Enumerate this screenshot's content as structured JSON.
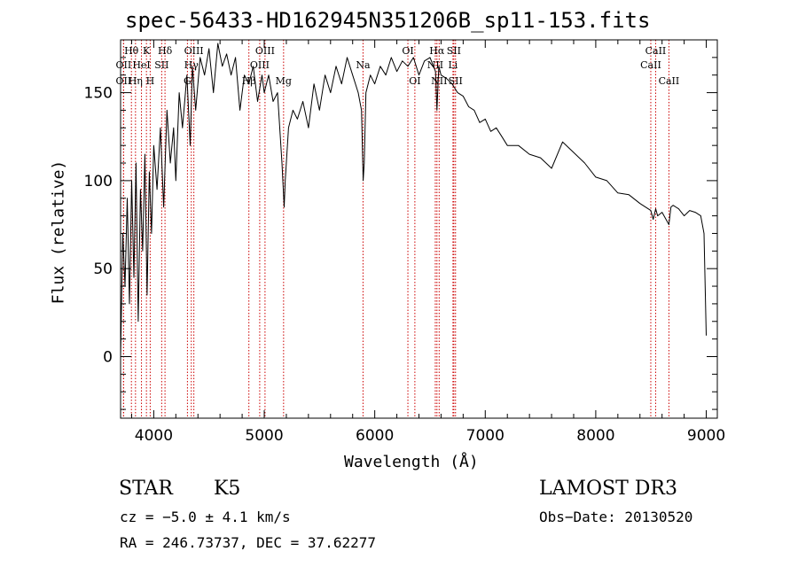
{
  "chart_data": {
    "type": "line",
    "title": "spec-56433-HD162945N351206B_sp11-153.fits",
    "xlabel": "Wavelength (Å)",
    "ylabel": "Flux (relative)",
    "xlim": [
      3700,
      9100
    ],
    "ylim": [
      -35,
      180
    ],
    "xticks": [
      4000,
      5000,
      6000,
      7000,
      8000,
      9000
    ],
    "yticks": [
      0,
      50,
      100,
      150
    ],
    "series": [
      {
        "name": "flux",
        "x": [
          3700,
          3720,
          3740,
          3760,
          3780,
          3800,
          3820,
          3840,
          3860,
          3880,
          3900,
          3920,
          3940,
          3960,
          3980,
          4000,
          4030,
          4060,
          4090,
          4120,
          4150,
          4180,
          4200,
          4230,
          4260,
          4300,
          4330,
          4350,
          4380,
          4420,
          4460,
          4500,
          4540,
          4580,
          4620,
          4660,
          4700,
          4740,
          4780,
          4820,
          4860,
          4900,
          4940,
          4980,
          5000,
          5040,
          5080,
          5120,
          5160,
          5180,
          5190,
          5220,
          5260,
          5300,
          5350,
          5400,
          5450,
          5500,
          5550,
          5600,
          5650,
          5700,
          5750,
          5800,
          5850,
          5880,
          5895,
          5905,
          5920,
          5960,
          6000,
          6050,
          6100,
          6150,
          6200,
          6250,
          6300,
          6350,
          6400,
          6450,
          6500,
          6550,
          6563,
          6580,
          6600,
          6650,
          6700,
          6750,
          6800,
          6850,
          6900,
          6950,
          7000,
          7050,
          7100,
          7150,
          7200,
          7300,
          7400,
          7500,
          7600,
          7700,
          7800,
          7900,
          8000,
          8100,
          8200,
          8300,
          8400,
          8498,
          8520,
          8542,
          8560,
          8600,
          8662,
          8680,
          8700,
          8750,
          8800,
          8850,
          8900,
          8950,
          8980,
          9000
        ],
        "values": [
          0,
          70,
          40,
          90,
          30,
          100,
          45,
          110,
          20,
          95,
          60,
          115,
          35,
          105,
          70,
          120,
          95,
          130,
          85,
          140,
          110,
          130,
          100,
          150,
          130,
          160,
          120,
          165,
          140,
          170,
          160,
          175,
          150,
          178,
          165,
          172,
          160,
          170,
          140,
          160,
          155,
          165,
          145,
          160,
          150,
          160,
          145,
          150,
          110,
          85,
          100,
          130,
          140,
          135,
          145,
          130,
          155,
          140,
          160,
          150,
          165,
          155,
          170,
          160,
          150,
          140,
          100,
          110,
          150,
          160,
          155,
          165,
          160,
          170,
          162,
          168,
          165,
          170,
          160,
          168,
          170,
          162,
          140,
          165,
          160,
          158,
          155,
          150,
          148,
          142,
          140,
          133,
          135,
          128,
          130,
          125,
          120,
          120,
          115,
          113,
          107,
          122,
          116,
          110,
          102,
          100,
          93,
          92,
          87,
          83,
          78,
          84,
          80,
          82,
          75,
          85,
          86,
          84,
          80,
          83,
          82,
          80,
          70,
          12
        ]
      }
    ],
    "lines": [
      {
        "label": "Hθ",
        "wavelength": 3798,
        "row": 1
      },
      {
        "label": "OII",
        "wavelength": 3727,
        "row": 2
      },
      {
        "label": "OII",
        "wavelength": 3727,
        "row": 3
      },
      {
        "label": "Hη",
        "wavelength": 3835,
        "row": 3
      },
      {
        "label": "K",
        "wavelength": 3934,
        "row": 1
      },
      {
        "label": "HeI",
        "wavelength": 3889,
        "row": 2
      },
      {
        "label": "SII",
        "wavelength": 4072,
        "row": 2
      },
      {
        "label": "H",
        "wavelength": 3968,
        "row": 3
      },
      {
        "label": "Hδ",
        "wavelength": 4102,
        "row": 1
      },
      {
        "label": "OIII",
        "wavelength": 4363,
        "row": 1
      },
      {
        "label": "Hγ",
        "wavelength": 4340,
        "row": 2
      },
      {
        "label": "G",
        "wavelength": 4305,
        "row": 3
      },
      {
        "label": "OIII",
        "wavelength": 5007,
        "row": 1
      },
      {
        "label": "OIII",
        "wavelength": 4959,
        "row": 2
      },
      {
        "label": "Hβ",
        "wavelength": 4861,
        "row": 3
      },
      {
        "label": "Mg",
        "wavelength": 5175,
        "row": 3
      },
      {
        "label": "Na",
        "wavelength": 5894,
        "row": 2
      },
      {
        "label": "OI",
        "wavelength": 6300,
        "row": 1
      },
      {
        "label": "OI",
        "wavelength": 6363,
        "row": 3
      },
      {
        "label": "Hα",
        "wavelength": 6563,
        "row": 1
      },
      {
        "label": "SII",
        "wavelength": 6716,
        "row": 1
      },
      {
        "label": "NII",
        "wavelength": 6548,
        "row": 2
      },
      {
        "label": "Li",
        "wavelength": 6708,
        "row": 2
      },
      {
        "label": "NII",
        "wavelength": 6583,
        "row": 3
      },
      {
        "label": "SII",
        "wavelength": 6731,
        "row": 3
      },
      {
        "label": "CaII",
        "wavelength": 8542,
        "row": 1
      },
      {
        "label": "CaII",
        "wavelength": 8498,
        "row": 2
      },
      {
        "label": "CaII",
        "wavelength": 8662,
        "row": 3
      }
    ]
  },
  "info": {
    "object_class": "STAR",
    "subclass": "K5",
    "survey": "LAMOST DR3",
    "redshift": "cz = −5.0 ± 4.1 km/s",
    "obs_date": "Obs−Date: 20130520",
    "coords": "RA = 246.73737, DEC =  37.62277"
  }
}
